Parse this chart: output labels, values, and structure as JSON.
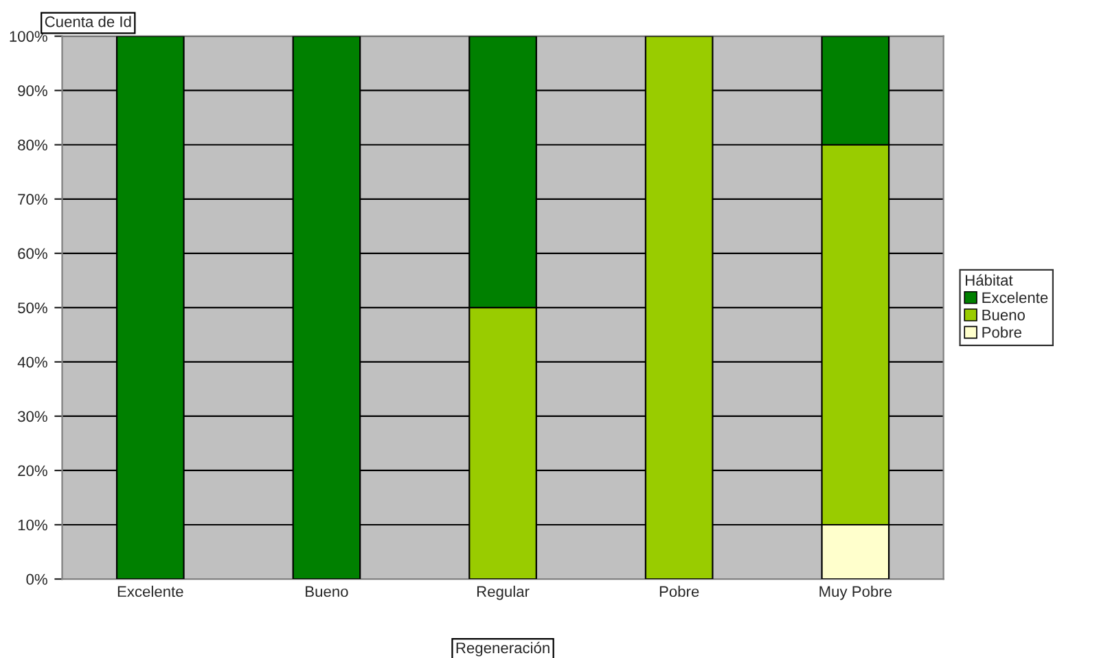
{
  "chart_data": {
    "type": "bar",
    "stacked": true,
    "xlabel": "Regeneración",
    "legend_title": "Hábitat",
    "legend": "right",
    "annotations": [
      "Cuenta de Id"
    ],
    "categories": [
      "Excelente",
      "Bueno",
      "Regular",
      "Pobre",
      "Muy Pobre"
    ],
    "series": [
      {
        "name": "Pobre",
        "color": "#ffffcc",
        "values": [
          0,
          0,
          0,
          0,
          10
        ]
      },
      {
        "name": "Bueno",
        "color": "#99cc00",
        "values": [
          0,
          0,
          50,
          100,
          70
        ]
      },
      {
        "name": "Excelente",
        "color": "#008000",
        "values": [
          100,
          100,
          50,
          0,
          20
        ]
      }
    ],
    "ylim": [
      0,
      100
    ],
    "yticks": [
      {
        "value": 0,
        "label": "0%"
      },
      {
        "value": 10,
        "label": "10%"
      },
      {
        "value": 20,
        "label": "20%"
      },
      {
        "value": 30,
        "label": "30%"
      },
      {
        "value": 40,
        "label": "40%"
      },
      {
        "value": 50,
        "label": "50%"
      },
      {
        "value": 60,
        "label": "60%"
      },
      {
        "value": 70,
        "label": "70%"
      },
      {
        "value": 80,
        "label": "80%"
      },
      {
        "value": 90,
        "label": "90%"
      },
      {
        "value": 100,
        "label": "100%"
      }
    ],
    "grid": "y"
  }
}
